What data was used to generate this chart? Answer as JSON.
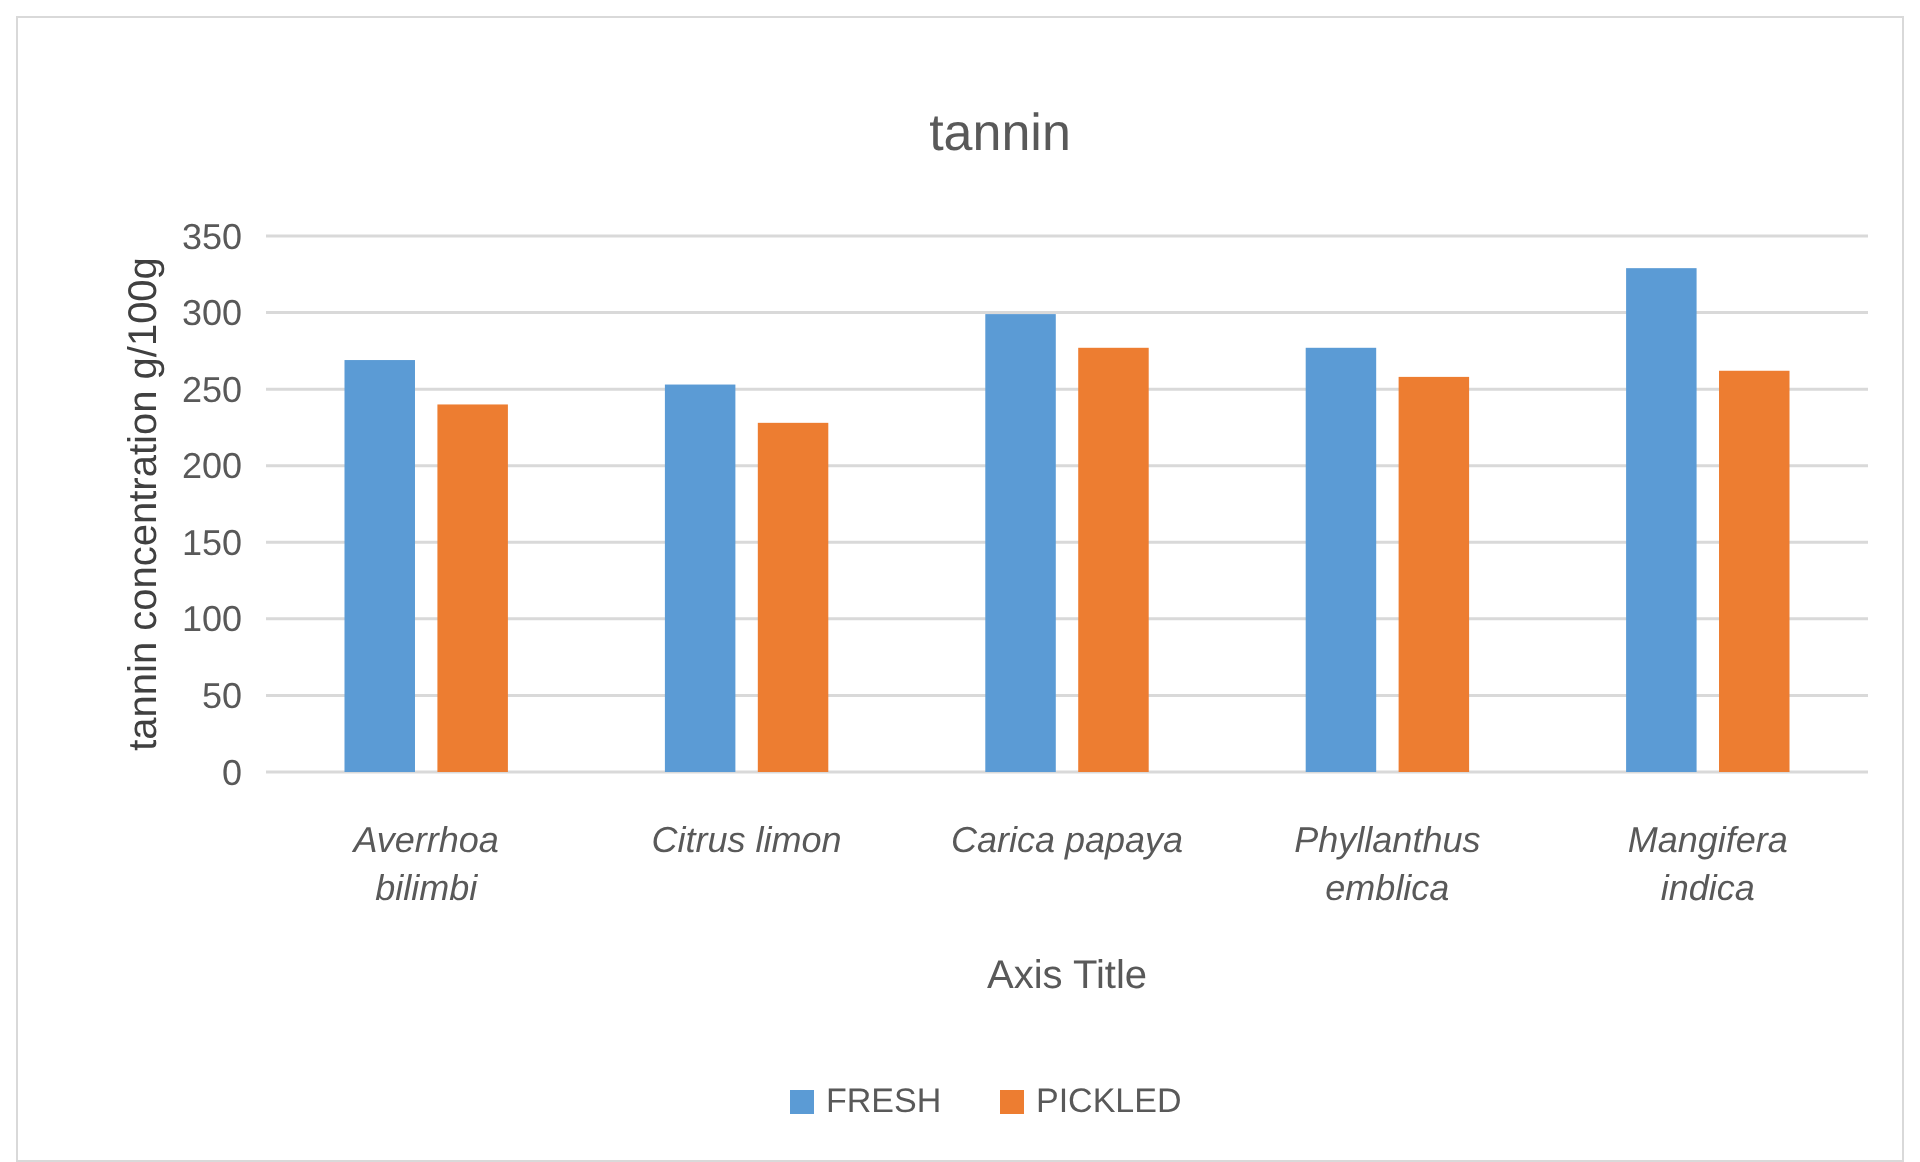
{
  "chart_data": {
    "type": "bar",
    "title": "tannin",
    "xlabel": "Axis Title",
    "ylabel": "tannin concentration g/100g",
    "categories": [
      "Averrhoa bilimbi",
      "Citrus limon",
      "Carica papaya",
      "Phyllanthus emblica",
      "Mangifera indica"
    ],
    "series": [
      {
        "name": "FRESH",
        "color": "#5b9bd5",
        "values": [
          269,
          253,
          299,
          277,
          329
        ]
      },
      {
        "name": "PICKLED",
        "color": "#ed7d31",
        "values": [
          240,
          228,
          277,
          258,
          262
        ]
      }
    ],
    "ylim": [
      0,
      350
    ],
    "yticks": [
      0,
      50,
      100,
      150,
      200,
      250,
      300,
      350
    ],
    "grid": "y",
    "legend": "bottom"
  }
}
